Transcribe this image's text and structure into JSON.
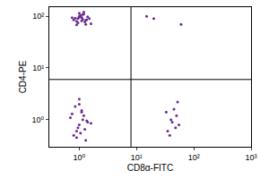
{
  "chart_data": {
    "type": "scatter",
    "x_label": "CD8α-FITC",
    "y_label": "CD4-PE",
    "log": true,
    "grid": false,
    "marker": "dot",
    "color": "#6a2c91",
    "xlim": [
      0.3,
      1000
    ],
    "ylim": [
      0.3,
      150
    ],
    "xticks": [
      {
        "value": 1,
        "label": "10⁰"
      },
      {
        "value": 10,
        "label": "10¹"
      },
      {
        "value": 100,
        "label": "10²"
      },
      {
        "value": 1000,
        "label": "10³"
      }
    ],
    "yticks": [
      {
        "value": 1,
        "label": "10⁰"
      },
      {
        "value": 10,
        "label": "10¹"
      },
      {
        "value": 100,
        "label": "10²"
      }
    ],
    "quadrant": {
      "x": 8,
      "y": 6
    },
    "x": [
      0.9,
      1.1,
      1.3,
      1.0,
      0.8,
      1.2,
      1.5,
      0.95,
      1.05,
      1.15,
      0.85,
      1.25,
      1.4,
      1.0,
      0.9,
      1.1,
      1.2,
      1.35,
      0.75,
      1.6,
      1.05,
      0.95,
      1.3,
      1.15,
      1.0,
      0.8,
      1.0,
      1.2,
      0.9,
      1.1,
      1.4,
      0.7,
      1.3,
      1.0,
      0.95,
      1.15,
      0.85,
      1.05,
      1.6,
      0.75,
      1.25,
      1.0,
      0.9,
      1.1,
      1.35,
      35,
      42,
      50,
      38,
      45,
      55,
      40,
      48,
      33,
      52,
      20,
      15,
      60
    ],
    "y": [
      80,
      95,
      70,
      100,
      85,
      110,
      90,
      75,
      105,
      88,
      92,
      78,
      98,
      115,
      68,
      82,
      120,
      86,
      94,
      72,
      102,
      90,
      84,
      108,
      96,
      0.5,
      0.8,
      1.2,
      0.6,
      1.5,
      0.9,
      1.1,
      0.4,
      2.0,
      0.7,
      1.0,
      1.8,
      0.55,
      0.85,
      1.3,
      0.65,
      2.5,
      0.45,
      1.4,
      0.95,
      0.6,
      0.9,
      1.2,
      0.5,
      1.6,
      0.8,
      1.0,
      0.7,
      1.4,
      2.2,
      90,
      100,
      70
    ]
  }
}
